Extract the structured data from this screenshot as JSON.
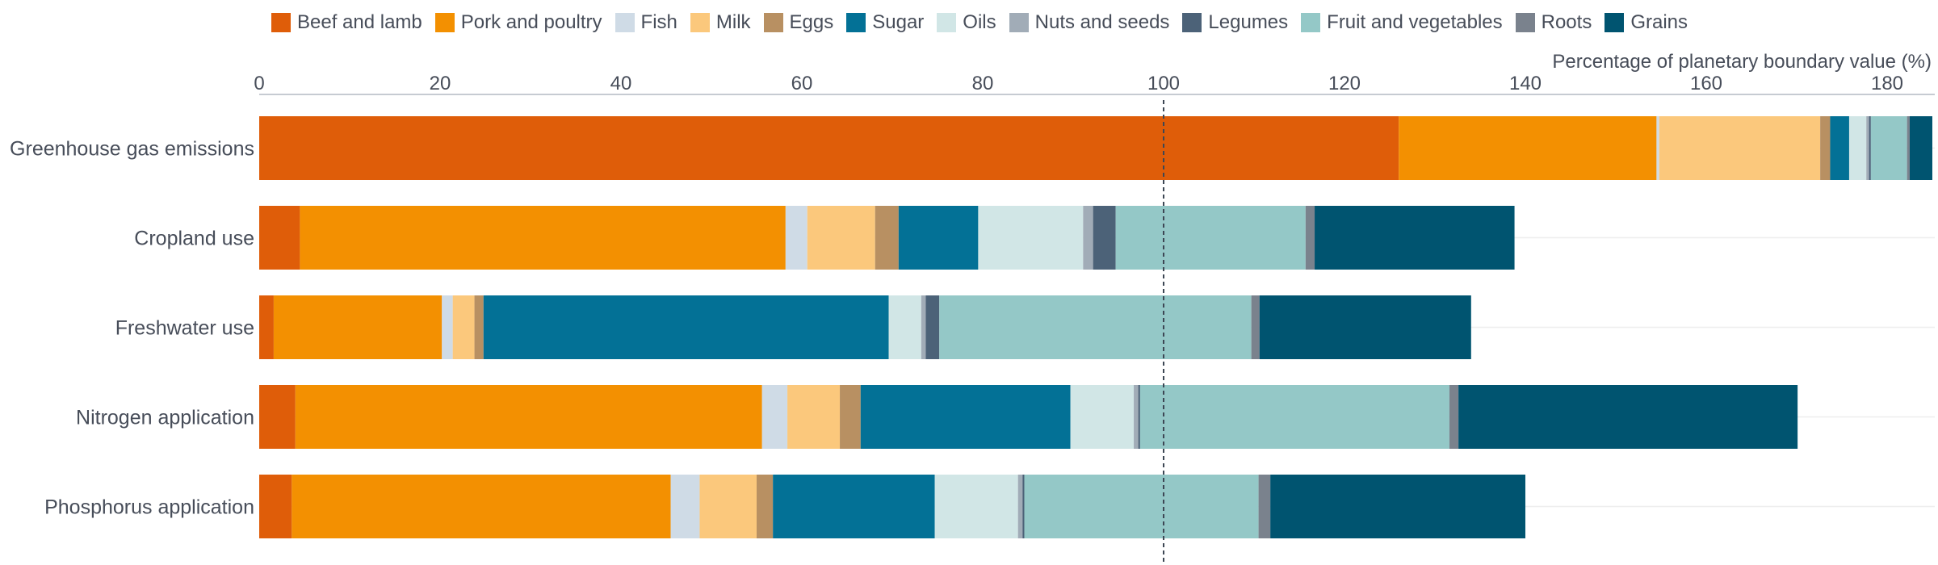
{
  "chart_data": {
    "type": "bar",
    "orientation": "horizontal",
    "stacked": true,
    "xlabel": "Percentage of planetary boundary value (%)",
    "xlim": [
      0,
      185
    ],
    "xticks": [
      0,
      20,
      40,
      60,
      80,
      100,
      120,
      140,
      160,
      180
    ],
    "reference_line": 100,
    "legend_position": "top",
    "categories": [
      "Greenhouse gas emissions",
      "Cropland use",
      "Freshwater use",
      "Nitrogen application",
      "Phosphorus application"
    ],
    "series": [
      {
        "name": "Beef and lamb",
        "color": "#df5d09",
        "values": [
          126,
          4.5,
          1.6,
          4,
          3.6
        ]
      },
      {
        "name": "Pork and poultry",
        "color": "#f39001",
        "values": [
          28.5,
          53.7,
          18.6,
          51.6,
          41.9
        ]
      },
      {
        "name": "Fish",
        "color": "#cfdbe6",
        "values": [
          0.3,
          2.4,
          1.2,
          2.8,
          3.2
        ]
      },
      {
        "name": "Milk",
        "color": "#fbc87c",
        "values": [
          17.8,
          7.5,
          2.4,
          5.8,
          6.3
        ]
      },
      {
        "name": "Eggs",
        "color": "#b89062",
        "values": [
          1.1,
          2.6,
          1.0,
          2.3,
          1.8
        ]
      },
      {
        "name": "Sugar",
        "color": "#037196",
        "values": [
          2.1,
          8.8,
          44.8,
          23.2,
          17.9
        ]
      },
      {
        "name": "Oils",
        "color": "#d1e6e6",
        "values": [
          1.9,
          11.6,
          3.6,
          7.0,
          9.2
        ]
      },
      {
        "name": "Nuts and seeds",
        "color": "#a1acb7",
        "values": [
          0.3,
          1.1,
          0.5,
          0.5,
          0.5
        ]
      },
      {
        "name": "Legumes",
        "color": "#4c6278",
        "values": [
          0.2,
          2.5,
          1.5,
          0.2,
          0.2
        ]
      },
      {
        "name": "Fruit and vegetables",
        "color": "#94c8c7",
        "values": [
          4.0,
          21.0,
          34.5,
          34.2,
          25.9
        ]
      },
      {
        "name": "Roots",
        "color": "#7a828d",
        "values": [
          0.3,
          1.0,
          0.9,
          1.0,
          1.3
        ]
      },
      {
        "name": "Grains",
        "color": "#005470",
        "values": [
          3.3,
          22.1,
          23.4,
          37.5,
          28.2
        ]
      }
    ]
  }
}
